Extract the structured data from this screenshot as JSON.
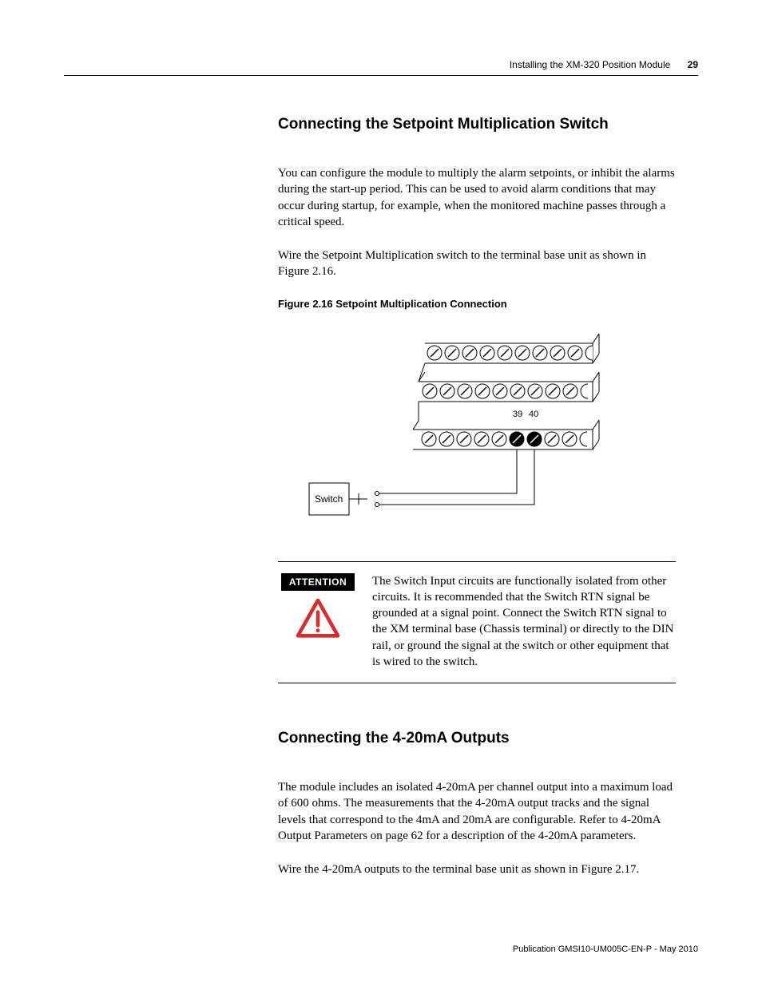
{
  "header": {
    "title": "Installing the XM-320 Position Module",
    "page_number": "29"
  },
  "section1": {
    "heading": "Connecting the Setpoint Multiplication Switch",
    "para1": "You can configure the module to multiply the alarm setpoints, or inhibit the alarms during the start-up period. This can be used to avoid alarm conditions that may occur during startup, for example, when the monitored machine passes through a critical speed.",
    "para2": "Wire the Setpoint Multiplication switch to the terminal base unit as shown in Figure 2.16.",
    "figure_caption": "Figure 2.16 Setpoint Multiplication Connection",
    "figure": {
      "switch_label": "Switch",
      "terminal_39": "39",
      "terminal_40": "40",
      "num_terminals_per_row": 9,
      "stroke_color": "#000000",
      "fill_white": "#ffffff",
      "highlighted_terminals_row3": [
        5,
        6
      ],
      "switch_symbol_radius": 2
    },
    "attention": {
      "badge": "ATTENTION",
      "icon_color": "#d32f2f",
      "text": "The Switch Input circuits are functionally isolated from other circuits. It is recommended that the Switch RTN signal be grounded at a signal point. Connect the Switch RTN signal to the XM terminal base (Chassis terminal) or directly to the DIN rail, or ground the signal at the switch or other equipment that is wired to the switch."
    }
  },
  "section2": {
    "heading": "Connecting the 4-20mA Outputs",
    "para1": "The module includes an isolated 4-20mA per channel output into a maximum load of 600 ohms. The measurements that the 4-20mA output tracks and the signal levels that correspond to the 4mA and 20mA are configurable. Refer to 4-20mA Output Parameters on page 62 for a description of the 4-20mA parameters.",
    "para2": "Wire the 4-20mA outputs to the terminal base unit as shown in Figure 2.17."
  },
  "footer": {
    "text": "Publication GMSI10-UM005C-EN-P - May 2010"
  },
  "colors": {
    "text": "#000000",
    "background": "#ffffff",
    "attention_icon": "#d32f2f"
  }
}
